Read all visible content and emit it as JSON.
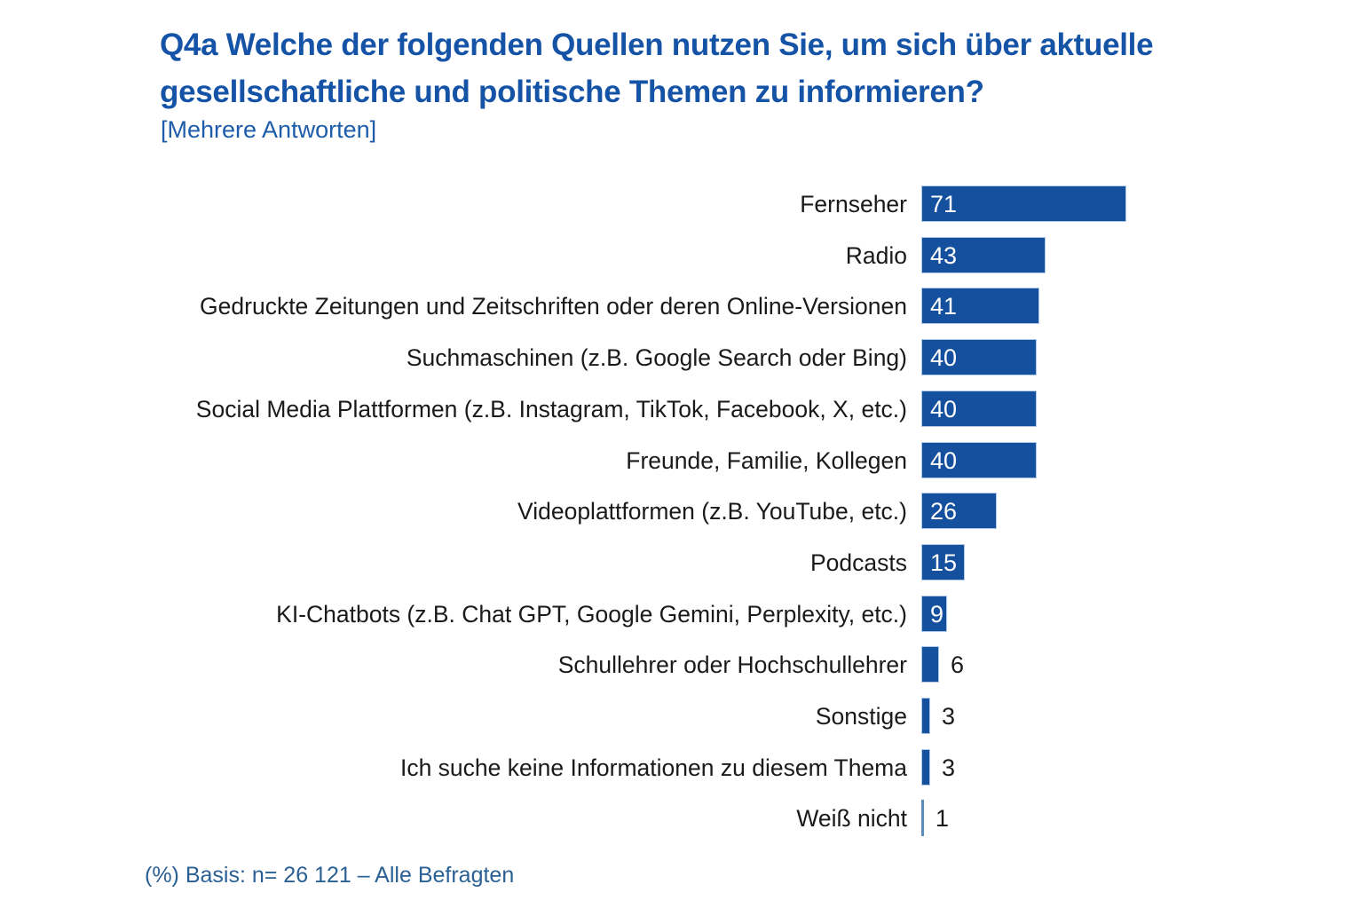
{
  "title": {
    "line1": "Q4a Welche der folgenden Quellen nutzen Sie, um sich über aktuelle",
    "line2": "gesellschaftliche und politische Themen zu informieren?",
    "note": "[Mehrere Antworten]"
  },
  "footer": {
    "basis": "(%) Basis: n= 26 121 – Alle Befragten"
  },
  "colors": {
    "bar_fill": "#15509E",
    "bar_border": "#AFC9E6",
    "bar_thin_fill": "#5B8BB8",
    "title_text": "#1553A6",
    "subtitle_text": "#1D5CA9",
    "category_text": "#1A1A1A",
    "value_inside_text": "#FFFFFF",
    "value_outside_text": "#1A1A1A",
    "footer_text": "#2B6094",
    "background": "#FFFFFF"
  },
  "chart_data": {
    "type": "bar",
    "orientation": "horizontal",
    "title": "Q4a Welche der folgenden Quellen nutzen Sie, um sich über aktuelle gesellschaftliche und politische Themen zu informieren? [Mehrere Antworten]",
    "unit": "%",
    "xlabel": "",
    "ylabel": "",
    "xlim": [
      0,
      100
    ],
    "grid": false,
    "legend": "none",
    "value_label_position": "inside bar start (white) for values >= 9, outside right (dark) for smaller values",
    "categories": [
      "Fernseher",
      "Radio",
      "Gedruckte Zeitungen und Zeitschriften oder deren Online-Versionen",
      "Suchmaschinen (z.B. Google Search oder Bing)",
      "Social Media Plattformen (z.B. Instagram, TikTok, Facebook, X, etc.)",
      "Freunde, Familie, Kollegen",
      "Videoplattformen (z.B. YouTube, etc.)",
      "Podcasts",
      "KI-Chatbots (z.B. Chat GPT, Google Gemini, Perplexity, etc.)",
      "Schullehrer oder Hochschullehrer",
      "Sonstige",
      "Ich suche keine Informationen zu diesem Thema",
      "Weiß nicht"
    ],
    "values": [
      71,
      43,
      41,
      40,
      40,
      40,
      26,
      15,
      9,
      6,
      3,
      3,
      1
    ]
  }
}
